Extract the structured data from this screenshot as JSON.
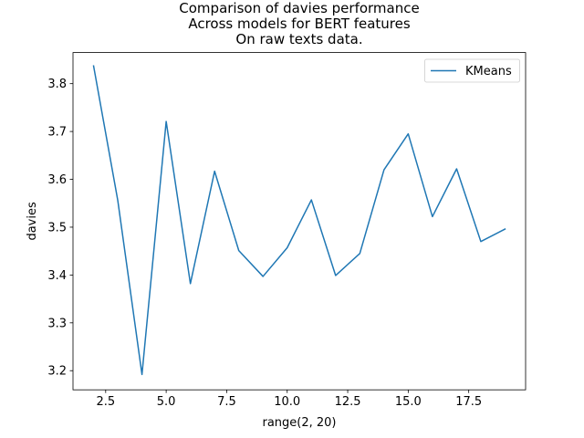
{
  "chart_data": {
    "type": "line",
    "title_lines": [
      "Comparison of davies performance",
      "Across models for BERT features",
      "On raw texts data."
    ],
    "xlabel": "range(2, 20)",
    "ylabel": "davies",
    "xlim": [
      1.15,
      19.85
    ],
    "ylim": [
      3.16,
      3.865
    ],
    "xticks": [
      2.5,
      5.0,
      7.5,
      10.0,
      12.5,
      15.0,
      17.5
    ],
    "xtick_labels": [
      "2.5",
      "5.0",
      "7.5",
      "10.0",
      "12.5",
      "15.0",
      "17.5"
    ],
    "yticks": [
      3.2,
      3.3,
      3.4,
      3.5,
      3.6,
      3.7,
      3.8
    ],
    "ytick_labels": [
      "3.2",
      "3.3",
      "3.4",
      "3.5",
      "3.6",
      "3.7",
      "3.8"
    ],
    "grid": false,
    "legend_position": "top-right",
    "series": [
      {
        "name": "KMeans",
        "color": "#1f77b4",
        "x": [
          2,
          3,
          4,
          5,
          6,
          7,
          8,
          9,
          10,
          11,
          12,
          13,
          14,
          15,
          16,
          17,
          18,
          19
        ],
        "y": [
          3.837,
          3.556,
          3.192,
          3.721,
          3.382,
          3.617,
          3.451,
          3.397,
          3.457,
          3.557,
          3.399,
          3.445,
          3.62,
          3.695,
          3.522,
          3.622,
          3.47,
          3.496
        ]
      }
    ]
  }
}
